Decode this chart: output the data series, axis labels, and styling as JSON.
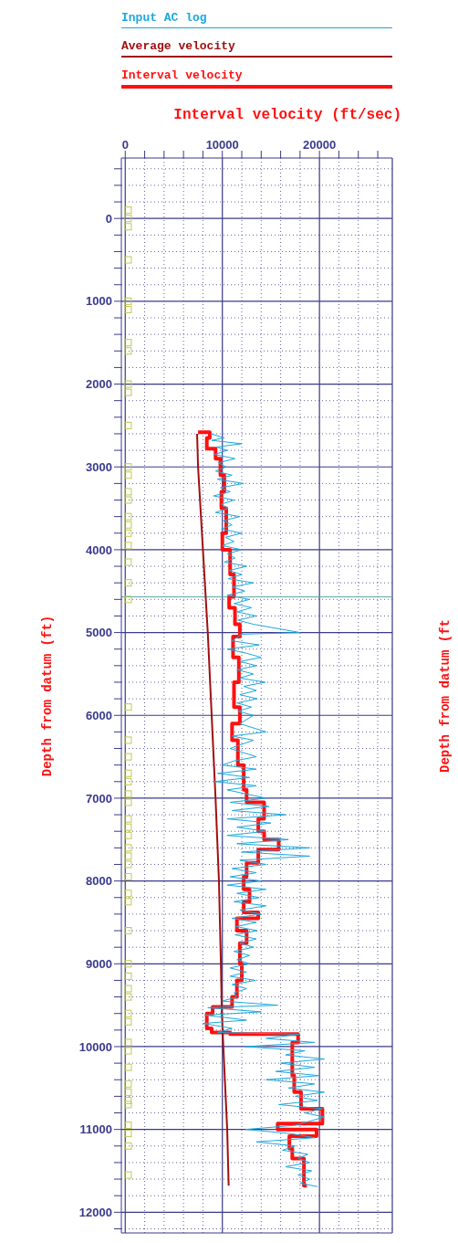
{
  "chart_data": {
    "type": "line",
    "xlabel": "Interval velocity (ft/sec)",
    "ylabel": "Depth from datum (ft)",
    "annotations": [
      "Depth from datum (ft"
    ],
    "legend": "top",
    "grid": true,
    "marker": "none",
    "line_style": "solid",
    "xlim": [
      -400,
      27500
    ],
    "xticks": [
      0,
      {
        "value": 2000,
        "label": null
      },
      {
        "value": 4000,
        "label": null
      },
      {
        "value": 6000,
        "label": null
      },
      {
        "value": 8000,
        "label": null
      },
      10000,
      {
        "value": 12000,
        "label": null
      },
      {
        "value": 14000,
        "label": null
      },
      {
        "value": 16000,
        "label": null
      },
      {
        "value": 18000,
        "label": null
      },
      20000,
      {
        "value": 22000,
        "label": null
      },
      {
        "value": 24000,
        "label": null
      },
      {
        "value": 26000,
        "label": null
      }
    ],
    "ylim": [
      12250,
      -730
    ],
    "yticks": [
      {
        "value": -600,
        "label": null
      },
      {
        "value": -400,
        "label": null
      },
      {
        "value": -200,
        "label": null
      },
      0,
      {
        "value": 200,
        "label": null
      },
      {
        "value": 400,
        "label": null
      },
      {
        "value": 600,
        "label": null
      },
      {
        "value": 800,
        "label": null
      },
      1000,
      {
        "value": 1200,
        "label": null
      },
      {
        "value": 1400,
        "label": null
      },
      {
        "value": 1600,
        "label": null
      },
      {
        "value": 1800,
        "label": null
      },
      2000,
      {
        "value": 2200,
        "label": null
      },
      {
        "value": 2400,
        "label": null
      },
      {
        "value": 2600,
        "label": null
      },
      {
        "value": 2800,
        "label": null
      },
      3000,
      {
        "value": 3200,
        "label": null
      },
      {
        "value": 3400,
        "label": null
      },
      {
        "value": 3600,
        "label": null
      },
      {
        "value": 3800,
        "label": null
      },
      4000,
      {
        "value": 4200,
        "label": null
      },
      {
        "value": 4400,
        "label": null
      },
      {
        "value": 4600,
        "label": null
      },
      {
        "value": 4800,
        "label": null
      },
      5000,
      {
        "value": 5200,
        "label": null
      },
      {
        "value": 5400,
        "label": null
      },
      {
        "value": 5600,
        "label": null
      },
      {
        "value": 5800,
        "label": null
      },
      6000,
      {
        "value": 6200,
        "label": null
      },
      {
        "value": 6400,
        "label": null
      },
      {
        "value": 6600,
        "label": null
      },
      {
        "value": 6800,
        "label": null
      },
      7000,
      {
        "value": 7200,
        "label": null
      },
      {
        "value": 7400,
        "label": null
      },
      {
        "value": 7600,
        "label": null
      },
      {
        "value": 7800,
        "label": null
      },
      8000,
      {
        "value": 8200,
        "label": null
      },
      {
        "value": 8400,
        "label": null
      },
      {
        "value": 8600,
        "label": null
      },
      {
        "value": 8800,
        "label": null
      },
      9000,
      {
        "value": 9200,
        "label": null
      },
      {
        "value": 9400,
        "label": null
      },
      {
        "value": 9600,
        "label": null
      },
      {
        "value": 9800,
        "label": null
      },
      10000,
      {
        "value": 10200,
        "label": null
      },
      {
        "value": 10400,
        "label": null
      },
      {
        "value": 10600,
        "label": null
      },
      {
        "value": 10800,
        "label": null
      },
      11000,
      {
        "value": 11200,
        "label": null
      },
      {
        "value": 11400,
        "label": null
      },
      {
        "value": 11600,
        "label": null
      },
      {
        "value": 11800,
        "label": null
      },
      12000,
      {
        "value": 12200,
        "label": null
      }
    ],
    "ref_lines": [
      {
        "axis": "y",
        "value": 4570,
        "label": null,
        "color": "#5aa8a0"
      }
    ],
    "series": [
      {
        "name": "Input AC log",
        "color": "#1ea8dc",
        "x": [
          8800,
          10200,
          8900,
          12000,
          9400,
          10500,
          9200,
          11300,
          9600,
          10400,
          9300,
          11000,
          9500,
          12200,
          9800,
          10800,
          9100,
          11200,
          9900,
          10600,
          9300,
          11800,
          10100,
          11000,
          9900,
          12000,
          10300,
          11200,
          10000,
          12000,
          10500,
          11300,
          10200,
          12500,
          10700,
          12000,
          10600,
          13200,
          11000,
          12300,
          10500,
          12800,
          11200,
          13000,
          11500,
          13500,
          11600,
          13200,
          18000,
          12000,
          11000,
          13800,
          10500,
          12500,
          14000,
          11800,
          13500,
          11500,
          13200,
          11800,
          14400,
          12200,
          13500,
          11800,
          13600,
          11500,
          13000,
          11600,
          13200,
          11800,
          14500,
          11000,
          13200,
          10800,
          13500,
          11200,
          10000,
          13500,
          9500,
          12800,
          9200,
          13500,
          10500,
          14500,
          10800,
          14800,
          11000,
          16500,
          10500,
          15000,
          11500,
          14500,
          10500,
          16800,
          11500,
          19000,
          12000,
          19000,
          11800,
          14500,
          11000,
          13500,
          10800,
          14000,
          10500,
          14500,
          11500,
          13800,
          11200,
          14500,
          11800,
          14000,
          11000,
          13500,
          11400,
          13600,
          11300,
          13500,
          11800,
          13200,
          11200,
          12800,
          11500,
          12800,
          10800,
          12500,
          10800,
          13400,
          11000,
          12500,
          11200,
          11500,
          10000,
          15700,
          8500,
          14000,
          8200,
          12500,
          8000,
          11000,
          9500,
          18000,
          14500,
          19500,
          12400,
          18500,
          16500,
          20500,
          16000,
          19500,
          15500,
          20000,
          14500,
          19500,
          16800,
          20500,
          17500,
          19800,
          15800,
          20300,
          18500,
          20500,
          19000,
          17500,
          12400,
          17000,
          19500,
          13500,
          17500,
          16200,
          18800,
          17800,
          19000,
          16500,
          19200,
          17800,
          19000,
          18000,
          19800
        ],
        "values": [
          2600,
          2650,
          2680,
          2720,
          2760,
          2800,
          2850,
          2900,
          2950,
          3000,
          3050,
          3100,
          3150,
          3200,
          3250,
          3300,
          3350,
          3400,
          3450,
          3500,
          3550,
          3600,
          3650,
          3700,
          3750,
          3800,
          3850,
          3900,
          3950,
          4000,
          4050,
          4100,
          4150,
          4200,
          4250,
          4300,
          4350,
          4400,
          4450,
          4500,
          4550,
          4600,
          4650,
          4700,
          4750,
          4800,
          4850,
          4900,
          5000,
          5020,
          5100,
          5150,
          5200,
          5250,
          5300,
          5350,
          5400,
          5450,
          5500,
          5550,
          5600,
          5650,
          5700,
          5750,
          5800,
          5850,
          5900,
          5950,
          6000,
          6100,
          6200,
          6250,
          6300,
          6400,
          6500,
          6550,
          6600,
          6650,
          6700,
          6750,
          6800,
          6850,
          6900,
          7000,
          7050,
          7100,
          7150,
          7200,
          7250,
          7300,
          7350,
          7400,
          7450,
          7500,
          7550,
          7600,
          7650,
          7700,
          7750,
          7800,
          7850,
          7900,
          7950,
          8000,
          8050,
          8100,
          8150,
          8200,
          8250,
          8300,
          8350,
          8400,
          8450,
          8500,
          8550,
          8600,
          8650,
          8700,
          8750,
          8800,
          8850,
          8900,
          8950,
          9000,
          9050,
          9100,
          9150,
          9200,
          9250,
          9300,
          9350,
          9400,
          9450,
          9500,
          9530,
          9580,
          9620,
          9680,
          9720,
          9780,
          9830,
          9850,
          9900,
          9950,
          10000,
          10050,
          10100,
          10150,
          10200,
          10250,
          10300,
          10350,
          10400,
          10450,
          10500,
          10550,
          10600,
          10650,
          10700,
          10750,
          10800,
          10850,
          10900,
          10950,
          11000,
          11050,
          11100,
          11150,
          11200,
          11250,
          11300,
          11350,
          11400,
          11450,
          11500,
          11550,
          11600,
          11650,
          11690
        ]
      },
      {
        "name": "Average velocity",
        "color": "#a01010",
        "x": [
          7400,
          7400,
          7500,
          8000,
          8500,
          8900,
          9300,
          9650,
          9850,
          9950,
          10100,
          10500,
          10650
        ],
        "values": [
          2600,
          2600,
          3000,
          4000,
          5000,
          6000,
          7000,
          8000,
          9000,
          9600,
          10000,
          11000,
          11680
        ]
      },
      {
        "name": "Interval velocity",
        "color": "#ff1010",
        "x": [
          7500,
          8700,
          8700,
          8400,
          8400,
          9300,
          9300,
          9800,
          9800,
          10200,
          10200,
          9900,
          9900,
          10400,
          10400,
          10000,
          10000,
          10800,
          10800,
          11200,
          11200,
          10700,
          10700,
          11300,
          11300,
          11800,
          11800,
          11100,
          11100,
          11700,
          11700,
          11200,
          11200,
          11800,
          11800,
          11000,
          11000,
          11600,
          11600,
          12200,
          12200,
          12500,
          12500,
          14300,
          14300,
          13700,
          13700,
          14300,
          14300,
          15800,
          15800,
          13700,
          13700,
          12500,
          12500,
          12200,
          12200,
          12800,
          12800,
          12200,
          12200,
          13700,
          13700,
          11500,
          11500,
          12500,
          12500,
          11800,
          11800,
          12000,
          12000,
          11500,
          11500,
          11000,
          11000,
          9000,
          9000,
          8400,
          8400,
          8900,
          8900,
          10800,
          10800,
          17800,
          17800,
          17200,
          17200,
          17400,
          17400,
          18100,
          18100,
          20300,
          20300,
          15700,
          15700,
          19700,
          19700,
          16900,
          16900,
          17200,
          17200,
          18400,
          18400,
          18700
        ],
        "values": [
          2580,
          2580,
          2650,
          2650,
          2780,
          2780,
          2900,
          2900,
          3100,
          3100,
          3300,
          3300,
          3500,
          3500,
          3800,
          3800,
          4000,
          4000,
          4300,
          4300,
          4570,
          4570,
          4700,
          4700,
          4900,
          4900,
          5050,
          5050,
          5300,
          5300,
          5600,
          5600,
          5900,
          5900,
          6100,
          6100,
          6300,
          6300,
          6600,
          6600,
          6900,
          6900,
          7050,
          7050,
          7250,
          7250,
          7400,
          7400,
          7500,
          7500,
          7620,
          7620,
          7780,
          7780,
          7950,
          7950,
          8100,
          8100,
          8250,
          8250,
          8380,
          8380,
          8450,
          8450,
          8600,
          8600,
          8750,
          8750,
          9000,
          9000,
          9200,
          9200,
          9400,
          9400,
          9520,
          9520,
          9600,
          9600,
          9780,
          9780,
          9830,
          9830,
          9850,
          9850,
          9950,
          9950,
          10350,
          10350,
          10550,
          10550,
          10750,
          10750,
          10930,
          10930,
          11000,
          11000,
          11080,
          11080,
          11230,
          11230,
          11350,
          11350,
          11680,
          11680
        ]
      },
      {
        "type": "scatter",
        "marker": "square",
        "color": "#c0c850",
        "x": [
          300,
          300,
          300,
          300,
          300,
          300,
          300,
          300,
          300,
          300,
          300,
          300,
          300,
          300,
          300,
          300,
          300,
          300,
          300,
          300,
          300,
          300,
          300,
          300,
          300,
          300,
          300,
          300,
          300,
          300,
          300,
          300,
          300,
          300,
          300,
          300,
          300,
          300,
          300,
          300,
          300,
          300,
          300,
          300,
          300,
          300,
          300,
          300,
          300,
          300,
          300,
          300,
          300,
          300,
          300,
          300
        ],
        "values": [
          -100,
          0,
          100,
          500,
          1000,
          1100,
          1500,
          1600,
          2000,
          2100,
          2500,
          3000,
          3100,
          3300,
          3400,
          3600,
          3700,
          3800,
          3950,
          4150,
          4400,
          4600,
          5900,
          6300,
          6500,
          6700,
          6800,
          6950,
          7050,
          7250,
          7350,
          7450,
          7600,
          7700,
          7800,
          7950,
          8150,
          8250,
          8600,
          9000,
          9150,
          9300,
          9400,
          9600,
          9700,
          9950,
          10050,
          10250,
          10450,
          10550,
          10650,
          10700,
          10950,
          11050,
          11200,
          11550
        ]
      }
    ]
  }
}
